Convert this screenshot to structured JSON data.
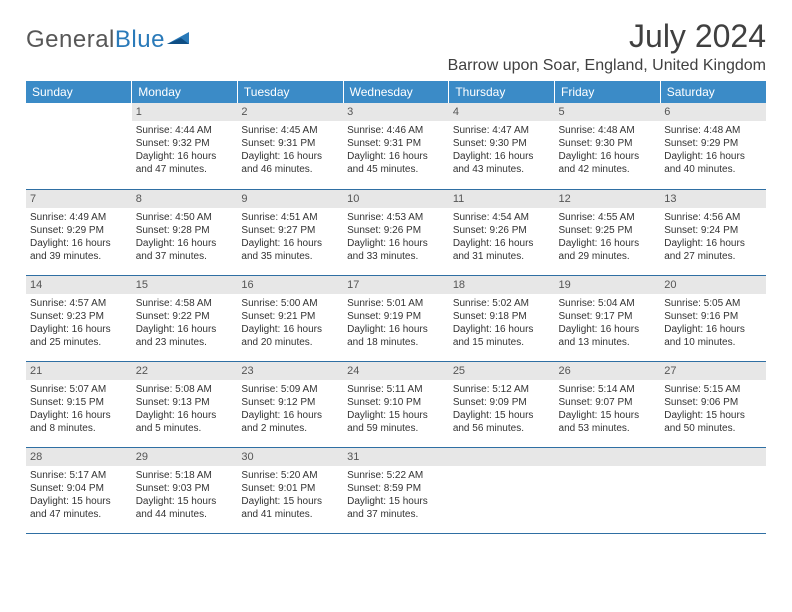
{
  "logo": {
    "word1": "General",
    "word2": "Blue"
  },
  "header": {
    "month_title": "July 2024",
    "location": "Barrow upon Soar, England, United Kingdom"
  },
  "colors": {
    "header_bg": "#3b8bc7",
    "header_text": "#ffffff",
    "daynum_bg": "#e7e7e7",
    "rule": "#2f6fa3",
    "logo_gray": "#575757",
    "logo_blue": "#2a7ab9"
  },
  "weekdays": [
    "Sunday",
    "Monday",
    "Tuesday",
    "Wednesday",
    "Thursday",
    "Friday",
    "Saturday"
  ],
  "weeks": [
    [
      null,
      {
        "n": "1",
        "sr": "Sunrise: 4:44 AM",
        "ss": "Sunset: 9:32 PM",
        "d1": "Daylight: 16 hours",
        "d2": "and 47 minutes."
      },
      {
        "n": "2",
        "sr": "Sunrise: 4:45 AM",
        "ss": "Sunset: 9:31 PM",
        "d1": "Daylight: 16 hours",
        "d2": "and 46 minutes."
      },
      {
        "n": "3",
        "sr": "Sunrise: 4:46 AM",
        "ss": "Sunset: 9:31 PM",
        "d1": "Daylight: 16 hours",
        "d2": "and 45 minutes."
      },
      {
        "n": "4",
        "sr": "Sunrise: 4:47 AM",
        "ss": "Sunset: 9:30 PM",
        "d1": "Daylight: 16 hours",
        "d2": "and 43 minutes."
      },
      {
        "n": "5",
        "sr": "Sunrise: 4:48 AM",
        "ss": "Sunset: 9:30 PM",
        "d1": "Daylight: 16 hours",
        "d2": "and 42 minutes."
      },
      {
        "n": "6",
        "sr": "Sunrise: 4:48 AM",
        "ss": "Sunset: 9:29 PM",
        "d1": "Daylight: 16 hours",
        "d2": "and 40 minutes."
      }
    ],
    [
      {
        "n": "7",
        "sr": "Sunrise: 4:49 AM",
        "ss": "Sunset: 9:29 PM",
        "d1": "Daylight: 16 hours",
        "d2": "and 39 minutes."
      },
      {
        "n": "8",
        "sr": "Sunrise: 4:50 AM",
        "ss": "Sunset: 9:28 PM",
        "d1": "Daylight: 16 hours",
        "d2": "and 37 minutes."
      },
      {
        "n": "9",
        "sr": "Sunrise: 4:51 AM",
        "ss": "Sunset: 9:27 PM",
        "d1": "Daylight: 16 hours",
        "d2": "and 35 minutes."
      },
      {
        "n": "10",
        "sr": "Sunrise: 4:53 AM",
        "ss": "Sunset: 9:26 PM",
        "d1": "Daylight: 16 hours",
        "d2": "and 33 minutes."
      },
      {
        "n": "11",
        "sr": "Sunrise: 4:54 AM",
        "ss": "Sunset: 9:26 PM",
        "d1": "Daylight: 16 hours",
        "d2": "and 31 minutes."
      },
      {
        "n": "12",
        "sr": "Sunrise: 4:55 AM",
        "ss": "Sunset: 9:25 PM",
        "d1": "Daylight: 16 hours",
        "d2": "and 29 minutes."
      },
      {
        "n": "13",
        "sr": "Sunrise: 4:56 AM",
        "ss": "Sunset: 9:24 PM",
        "d1": "Daylight: 16 hours",
        "d2": "and 27 minutes."
      }
    ],
    [
      {
        "n": "14",
        "sr": "Sunrise: 4:57 AM",
        "ss": "Sunset: 9:23 PM",
        "d1": "Daylight: 16 hours",
        "d2": "and 25 minutes."
      },
      {
        "n": "15",
        "sr": "Sunrise: 4:58 AM",
        "ss": "Sunset: 9:22 PM",
        "d1": "Daylight: 16 hours",
        "d2": "and 23 minutes."
      },
      {
        "n": "16",
        "sr": "Sunrise: 5:00 AM",
        "ss": "Sunset: 9:21 PM",
        "d1": "Daylight: 16 hours",
        "d2": "and 20 minutes."
      },
      {
        "n": "17",
        "sr": "Sunrise: 5:01 AM",
        "ss": "Sunset: 9:19 PM",
        "d1": "Daylight: 16 hours",
        "d2": "and 18 minutes."
      },
      {
        "n": "18",
        "sr": "Sunrise: 5:02 AM",
        "ss": "Sunset: 9:18 PM",
        "d1": "Daylight: 16 hours",
        "d2": "and 15 minutes."
      },
      {
        "n": "19",
        "sr": "Sunrise: 5:04 AM",
        "ss": "Sunset: 9:17 PM",
        "d1": "Daylight: 16 hours",
        "d2": "and 13 minutes."
      },
      {
        "n": "20",
        "sr": "Sunrise: 5:05 AM",
        "ss": "Sunset: 9:16 PM",
        "d1": "Daylight: 16 hours",
        "d2": "and 10 minutes."
      }
    ],
    [
      {
        "n": "21",
        "sr": "Sunrise: 5:07 AM",
        "ss": "Sunset: 9:15 PM",
        "d1": "Daylight: 16 hours",
        "d2": "and 8 minutes."
      },
      {
        "n": "22",
        "sr": "Sunrise: 5:08 AM",
        "ss": "Sunset: 9:13 PM",
        "d1": "Daylight: 16 hours",
        "d2": "and 5 minutes."
      },
      {
        "n": "23",
        "sr": "Sunrise: 5:09 AM",
        "ss": "Sunset: 9:12 PM",
        "d1": "Daylight: 16 hours",
        "d2": "and 2 minutes."
      },
      {
        "n": "24",
        "sr": "Sunrise: 5:11 AM",
        "ss": "Sunset: 9:10 PM",
        "d1": "Daylight: 15 hours",
        "d2": "and 59 minutes."
      },
      {
        "n": "25",
        "sr": "Sunrise: 5:12 AM",
        "ss": "Sunset: 9:09 PM",
        "d1": "Daylight: 15 hours",
        "d2": "and 56 minutes."
      },
      {
        "n": "26",
        "sr": "Sunrise: 5:14 AM",
        "ss": "Sunset: 9:07 PM",
        "d1": "Daylight: 15 hours",
        "d2": "and 53 minutes."
      },
      {
        "n": "27",
        "sr": "Sunrise: 5:15 AM",
        "ss": "Sunset: 9:06 PM",
        "d1": "Daylight: 15 hours",
        "d2": "and 50 minutes."
      }
    ],
    [
      {
        "n": "28",
        "sr": "Sunrise: 5:17 AM",
        "ss": "Sunset: 9:04 PM",
        "d1": "Daylight: 15 hours",
        "d2": "and 47 minutes."
      },
      {
        "n": "29",
        "sr": "Sunrise: 5:18 AM",
        "ss": "Sunset: 9:03 PM",
        "d1": "Daylight: 15 hours",
        "d2": "and 44 minutes."
      },
      {
        "n": "30",
        "sr": "Sunrise: 5:20 AM",
        "ss": "Sunset: 9:01 PM",
        "d1": "Daylight: 15 hours",
        "d2": "and 41 minutes."
      },
      {
        "n": "31",
        "sr": "Sunrise: 5:22 AM",
        "ss": "Sunset: 8:59 PM",
        "d1": "Daylight: 15 hours",
        "d2": "and 37 minutes."
      },
      null,
      null,
      null
    ]
  ]
}
